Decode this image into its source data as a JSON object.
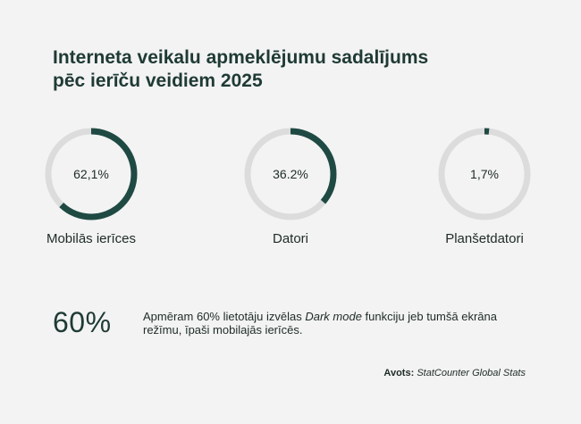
{
  "title_lines": [
    "Interneta veikalu apmeklējumu sadalījums",
    "pēc ierīču veidiem 2025"
  ],
  "colors": {
    "accent": "#1f4a43",
    "track": "#dcdcdc",
    "background": "#f3f3f3"
  },
  "chart_data": {
    "type": "pie",
    "title": "Interneta veikalu apmeklējumu sadalījums pēc ierīču veidiem 2025",
    "categories": [
      "Mobilās ierīces",
      "Datori",
      "Planšetdatori"
    ],
    "values": [
      62.1,
      36.2,
      1.7
    ],
    "value_labels": [
      "62,1%",
      "36.2%",
      "1,7%"
    ]
  },
  "stat": {
    "value": "60%",
    "text_before": "Apmēram 60% lietotāju izvēlas ",
    "text_italic": "Dark mode",
    "text_after": " funkciju jeb tumšā ekrāna režīmu, īpaši mobilajās ierīcēs."
  },
  "source": {
    "label": "Avots:",
    "value": "StatCounter Global Stats"
  }
}
